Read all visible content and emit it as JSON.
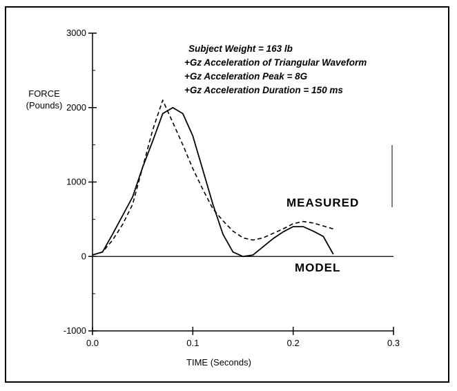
{
  "chart_data": {
    "type": "line",
    "title": "",
    "xlabel": "TIME (Seconds)",
    "ylabel": "FORCE",
    "ylabel_sub": "(Pounds)",
    "xlim": [
      0.0,
      0.3
    ],
    "ylim": [
      -1000,
      3000
    ],
    "x_ticks": [
      0.0,
      0.1,
      0.2,
      0.3
    ],
    "x_tick_labels": [
      "0.0",
      "0.1",
      "0.2",
      "0.3"
    ],
    "y_ticks": [
      -1000,
      0,
      1000,
      2000,
      3000
    ],
    "y_tick_labels": [
      "-1000",
      "0",
      "1000",
      "2000",
      "3000"
    ],
    "grid": false,
    "annotations": [
      "Subject Weight = 163 lb",
      "+Gz Acceleration of Triangular Waveform",
      "+Gz Acceleration Peak = 8G",
      "+Gz Acceleration Duration = 150 ms"
    ],
    "series": [
      {
        "name": "MEASURED",
        "style": "dashed",
        "x": [
          0.0,
          0.01,
          0.02,
          0.03,
          0.04,
          0.05,
          0.06,
          0.07,
          0.08,
          0.09,
          0.1,
          0.11,
          0.12,
          0.13,
          0.14,
          0.15,
          0.16,
          0.17,
          0.18,
          0.19,
          0.2,
          0.21,
          0.22,
          0.23,
          0.24
        ],
        "y": [
          20,
          60,
          220,
          430,
          700,
          1200,
          1700,
          2100,
          1800,
          1500,
          1180,
          900,
          640,
          480,
          340,
          250,
          220,
          250,
          310,
          370,
          440,
          470,
          450,
          410,
          370
        ]
      },
      {
        "name": "MODEL",
        "style": "solid",
        "x": [
          0.0,
          0.01,
          0.02,
          0.03,
          0.04,
          0.05,
          0.06,
          0.07,
          0.08,
          0.09,
          0.1,
          0.11,
          0.12,
          0.13,
          0.14,
          0.15,
          0.16,
          0.17,
          0.18,
          0.19,
          0.2,
          0.21,
          0.22,
          0.23,
          0.24
        ],
        "y": [
          20,
          60,
          300,
          550,
          800,
          1200,
          1550,
          1920,
          2000,
          1920,
          1620,
          1160,
          700,
          300,
          60,
          0,
          20,
          130,
          240,
          330,
          400,
          400,
          340,
          270,
          30
        ]
      }
    ],
    "series_label_positions": [
      "right-of-peak-upper",
      "right-of-peak-lower"
    ]
  }
}
